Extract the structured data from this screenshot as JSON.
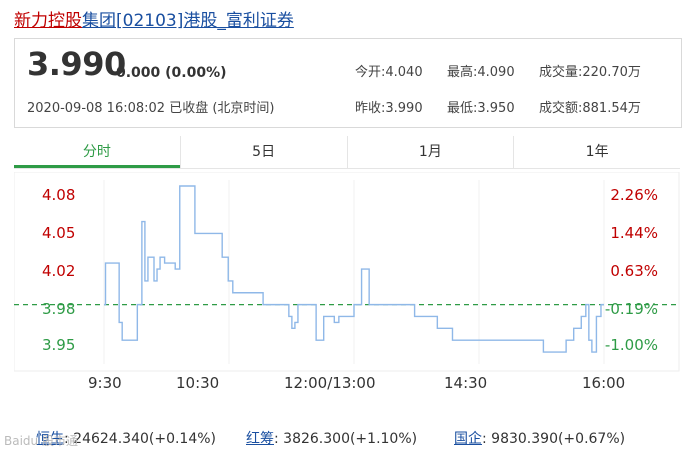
{
  "title": {
    "part1": "新力控股",
    "part2": "集团[02103]港股_富利证券"
  },
  "quote": {
    "price": "3.990",
    "change": "0.000 (0.00%)",
    "timestamp": "2020-09-08 16:08:02",
    "status": "已收盘 (北京时间)",
    "stats": {
      "open": "今开:4.040",
      "high": "最高:4.090",
      "volume": "成交量:220.70万",
      "prev_close": "昨收:3.990",
      "low": "最低:3.950",
      "turnover": "成交额:881.54万"
    }
  },
  "tabs": [
    "分时",
    "5日",
    "1月",
    "1年"
  ],
  "colors": {
    "up": "#c00000",
    "down": "#2e9b46",
    "line": "#8fb8e8",
    "baseline": "#2e9b46"
  },
  "chart_data": {
    "type": "line",
    "y_left_labels": [
      "4.08",
      "4.05",
      "4.02",
      "3.98",
      "3.95"
    ],
    "y_right_labels": [
      "2.26%",
      "1.44%",
      "0.63%",
      "-0.19%",
      "-1.00%"
    ],
    "x_labels": [
      "9:30",
      "10:30",
      "12:00/13:00",
      "14:30",
      "16:00"
    ],
    "prev_close": 3.99,
    "ylim": [
      3.945,
      4.09
    ],
    "x_range": [
      0,
      330
    ],
    "series": [
      {
        "x": [
          0,
          1,
          5,
          10,
          12,
          15,
          17,
          22,
          25,
          27,
          29,
          31,
          33,
          35,
          37,
          40,
          42,
          45,
          47,
          50,
          53,
          56,
          60,
          65,
          70,
          73,
          75,
          78,
          82,
          85,
          90,
          95,
          100,
          105,
          110,
          115,
          120,
          122,
          124,
          126,
          128,
          130,
          135,
          140,
          145,
          150,
          152,
          155,
          160,
          165,
          170,
          175,
          178,
          180,
          183,
          185,
          190,
          195,
          200,
          205,
          210,
          215,
          220,
          225,
          230,
          235,
          240,
          245,
          250,
          255,
          260,
          265,
          270,
          275,
          280,
          285,
          290,
          295,
          300,
          305,
          310,
          315,
          318,
          320,
          322,
          325,
          328,
          330
        ],
        "y": [
          3.99,
          4.025,
          4.025,
          3.975,
          3.96,
          3.96,
          3.96,
          3.99,
          4.06,
          4.01,
          4.03,
          4.03,
          4.01,
          4.02,
          4.03,
          4.025,
          4.025,
          4.025,
          4.02,
          4.09,
          4.09,
          4.09,
          4.05,
          4.05,
          4.05,
          4.05,
          4.05,
          4.03,
          4.01,
          4.0,
          4.0,
          4.0,
          4.0,
          3.99,
          3.99,
          3.99,
          3.99,
          3.98,
          3.97,
          3.975,
          3.99,
          3.99,
          3.99,
          3.96,
          3.98,
          3.98,
          3.975,
          3.98,
          3.98,
          3.99,
          4.02,
          3.99,
          3.99,
          3.99,
          3.99,
          3.99,
          3.99,
          3.99,
          3.99,
          3.98,
          3.98,
          3.98,
          3.97,
          3.97,
          3.96,
          3.96,
          3.96,
          3.96,
          3.96,
          3.96,
          3.96,
          3.96,
          3.96,
          3.96,
          3.96,
          3.96,
          3.95,
          3.95,
          3.95,
          3.96,
          3.97,
          3.98,
          3.99,
          3.96,
          3.95,
          3.98,
          3.99,
          3.99
        ]
      }
    ]
  },
  "indices": [
    {
      "name": "恒生",
      "value": "24624.340(+0.14%)"
    },
    {
      "name": "红筹",
      "value": "3826.300(+1.10%)"
    },
    {
      "name": "国企",
      "value": "9830.390(+0.67%)"
    }
  ],
  "watermark": "Baidu 股市通"
}
